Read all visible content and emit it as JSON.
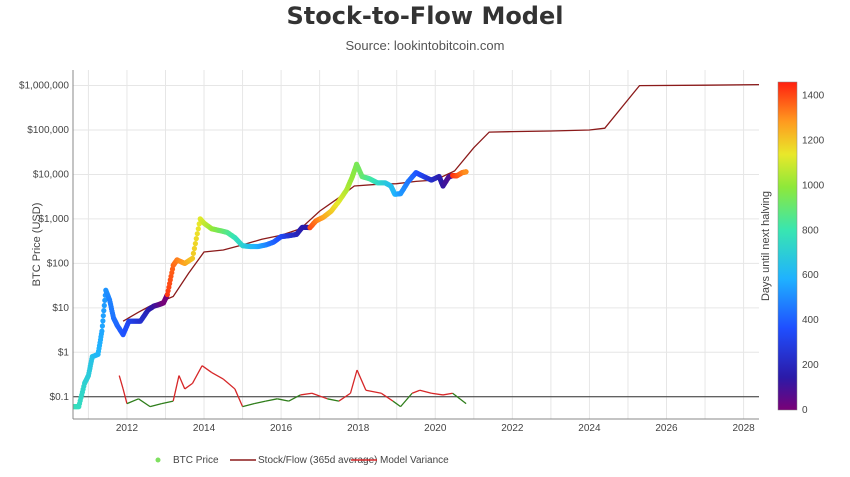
{
  "header": {
    "title": "Stock-to-Flow Model",
    "subtitle": "Source: lookintobitcoin.com"
  },
  "chart_data": {
    "type": "line",
    "title": "Stock-to-Flow Model",
    "subtitle": "Source: lookintobitcoin.com",
    "ylabel": "BTC Price (USD)",
    "y_scale": "log",
    "xlim": [
      2010.6,
      2028.4
    ],
    "ylim_log10": [
      -1.5,
      6.35
    ],
    "x_ticks": [
      "2012",
      "2014",
      "2016",
      "2018",
      "2020",
      "2022",
      "2024",
      "2026",
      "2028"
    ],
    "y_ticks": [
      "$0.1",
      "$1",
      "$10",
      "$100",
      "$1,000",
      "$10,000",
      "$100,000",
      "$1,000,000"
    ],
    "grid": true,
    "legend_position": "bottom",
    "colors": {
      "stock_flow": "#8b1a1a",
      "model_variance_high": "#d62728",
      "model_variance_low": "#2e7d1a",
      "baseline": "#333333",
      "legend_btc_dot": "#7fe060"
    },
    "colorbar": {
      "label": "Days until next halving",
      "range": [
        0,
        1460
      ],
      "ticks": [
        "0",
        "200",
        "400",
        "600",
        "800",
        "1000",
        "1200",
        "1400"
      ]
    },
    "series": [
      {
        "name": "BTC Price",
        "style": "markers colored by days until next halving",
        "points": [
          [
            2010.6,
            0.06,
            800
          ],
          [
            2010.75,
            0.06,
            760
          ],
          [
            2010.9,
            0.2,
            720
          ],
          [
            2011.0,
            0.3,
            690
          ],
          [
            2011.1,
            0.8,
            650
          ],
          [
            2011.25,
            0.9,
            600
          ],
          [
            2011.35,
            3,
            560
          ],
          [
            2011.45,
            25,
            520
          ],
          [
            2011.55,
            15,
            480
          ],
          [
            2011.65,
            6,
            450
          ],
          [
            2011.75,
            4,
            420
          ],
          [
            2011.9,
            2.5,
            380
          ],
          [
            2012.05,
            5,
            330
          ],
          [
            2012.2,
            5,
            290
          ],
          [
            2012.35,
            5,
            250
          ],
          [
            2012.55,
            9,
            180
          ],
          [
            2012.7,
            11,
            120
          ],
          [
            2012.85,
            12,
            60
          ],
          [
            2012.95,
            13,
            10
          ],
          [
            2013.05,
            20,
            1420
          ],
          [
            2013.2,
            90,
            1360
          ],
          [
            2013.3,
            120,
            1330
          ],
          [
            2013.5,
            100,
            1270
          ],
          [
            2013.7,
            130,
            1200
          ],
          [
            2013.9,
            1000,
            1130
          ],
          [
            2014.0,
            800,
            1090
          ],
          [
            2014.2,
            600,
            1010
          ],
          [
            2014.4,
            550,
            940
          ],
          [
            2014.6,
            500,
            870
          ],
          [
            2014.8,
            380,
            790
          ],
          [
            2015.0,
            250,
            720
          ],
          [
            2015.2,
            240,
            640
          ],
          [
            2015.4,
            240,
            570
          ],
          [
            2015.6,
            260,
            500
          ],
          [
            2015.8,
            300,
            420
          ],
          [
            2016.0,
            400,
            350
          ],
          [
            2016.2,
            420,
            270
          ],
          [
            2016.4,
            450,
            200
          ],
          [
            2016.55,
            650,
            150
          ],
          [
            2016.75,
            640,
            1400
          ],
          [
            2016.9,
            900,
            1340
          ],
          [
            2017.1,
            1100,
            1270
          ],
          [
            2017.3,
            1500,
            1200
          ],
          [
            2017.5,
            2500,
            1130
          ],
          [
            2017.7,
            4500,
            1050
          ],
          [
            2017.85,
            9000,
            1000
          ],
          [
            2017.96,
            17000,
            950
          ],
          [
            2018.1,
            9000,
            910
          ],
          [
            2018.3,
            8000,
            840
          ],
          [
            2018.5,
            6500,
            760
          ],
          [
            2018.7,
            6500,
            690
          ],
          [
            2018.85,
            5500,
            640
          ],
          [
            2018.95,
            3600,
            600
          ],
          [
            2019.1,
            3700,
            530
          ],
          [
            2019.3,
            7000,
            460
          ],
          [
            2019.5,
            11000,
            390
          ],
          [
            2019.7,
            9000,
            310
          ],
          [
            2019.9,
            7500,
            240
          ],
          [
            2020.1,
            9000,
            170
          ],
          [
            2020.2,
            5500,
            130
          ],
          [
            2020.35,
            8800,
            80
          ],
          [
            2020.45,
            9500,
            1440
          ],
          [
            2020.55,
            9300,
            1400
          ],
          [
            2020.7,
            11000,
            1340
          ],
          [
            2020.8,
            11500,
            1300
          ]
        ]
      },
      {
        "name": "Stock/Flow (365d average)",
        "points": [
          [
            2011.9,
            5
          ],
          [
            2012.3,
            8
          ],
          [
            2012.6,
            11
          ],
          [
            2012.9,
            14
          ],
          [
            2013.2,
            18
          ],
          [
            2013.6,
            60
          ],
          [
            2014.0,
            180
          ],
          [
            2014.5,
            200
          ],
          [
            2015.0,
            260
          ],
          [
            2015.5,
            350
          ],
          [
            2016.0,
            430
          ],
          [
            2016.5,
            600
          ],
          [
            2017.0,
            1500
          ],
          [
            2017.5,
            3000
          ],
          [
            2017.9,
            5500
          ],
          [
            2018.5,
            6000
          ],
          [
            2019.0,
            6200
          ],
          [
            2019.5,
            7000
          ],
          [
            2020.0,
            7500
          ],
          [
            2020.5,
            12000
          ],
          [
            2021.0,
            40000
          ],
          [
            2021.4,
            90000
          ],
          [
            2022.0,
            92000
          ],
          [
            2023.0,
            95000
          ],
          [
            2024.0,
            100000
          ],
          [
            2024.4,
            110000
          ],
          [
            2025.3,
            1000000
          ],
          [
            2027.0,
            1020000
          ],
          [
            2028.4,
            1050000
          ]
        ]
      },
      {
        "name": "Model Variance",
        "baseline": 0.1,
        "points": [
          [
            2011.8,
            0.3
          ],
          [
            2011.9,
            0.15
          ],
          [
            2012.0,
            0.07
          ],
          [
            2012.3,
            0.09
          ],
          [
            2012.6,
            0.06
          ],
          [
            2012.9,
            0.07
          ],
          [
            2013.2,
            0.08
          ],
          [
            2013.35,
            0.3
          ],
          [
            2013.5,
            0.15
          ],
          [
            2013.7,
            0.2
          ],
          [
            2013.95,
            0.5
          ],
          [
            2014.2,
            0.35
          ],
          [
            2014.5,
            0.25
          ],
          [
            2014.8,
            0.15
          ],
          [
            2015.0,
            0.06
          ],
          [
            2015.3,
            0.07
          ],
          [
            2015.6,
            0.08
          ],
          [
            2015.9,
            0.09
          ],
          [
            2016.2,
            0.08
          ],
          [
            2016.5,
            0.11
          ],
          [
            2016.8,
            0.12
          ],
          [
            2017.2,
            0.09
          ],
          [
            2017.5,
            0.08
          ],
          [
            2017.8,
            0.12
          ],
          [
            2017.97,
            0.4
          ],
          [
            2018.2,
            0.14
          ],
          [
            2018.6,
            0.12
          ],
          [
            2018.9,
            0.08
          ],
          [
            2019.1,
            0.06
          ],
          [
            2019.4,
            0.12
          ],
          [
            2019.6,
            0.14
          ],
          [
            2019.9,
            0.12
          ],
          [
            2020.2,
            0.11
          ],
          [
            2020.45,
            0.12
          ],
          [
            2020.8,
            0.07
          ]
        ]
      }
    ],
    "legend": [
      "BTC Price",
      "Stock/Flow (365d average)",
      "Model Variance"
    ]
  }
}
